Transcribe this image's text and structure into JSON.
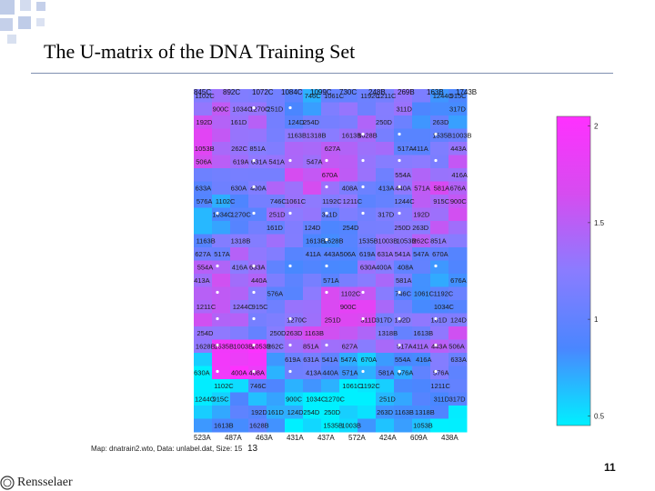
{
  "slide": {
    "title": "The U-matrix of the DNA Training Set",
    "slide_number": "11",
    "logo_text": "Rensselaer",
    "caption_left": "Map: dnatrain2.wto, Data: unlabel.dat, Size: 15",
    "caption_right": "13",
    "accent_colors": [
      "#bfcce8",
      "#c7d3ea",
      "#d8e0f0",
      "#7f8fb0"
    ]
  },
  "chart_data": {
    "type": "heatmap",
    "title": "",
    "colorbar": {
      "ticks": [
        "2",
        "1.5",
        "1",
        "0.5"
      ],
      "tick_values": [
        2,
        1.5,
        1,
        0.5
      ],
      "range": [
        0.45,
        2.05
      ],
      "colormap": [
        "#00f0ff",
        "#4a86ff",
        "#8a7cff",
        "#d64cf0",
        "#ff30ff"
      ]
    },
    "top_row_labels": [
      "845C",
      "892C",
      "1072C",
      "1084C",
      "1099C",
      "730C",
      "248B",
      "269B",
      "163B",
      "1743B"
    ],
    "bottom_row_labels": [
      "523A",
      "487A",
      "463A",
      "431A",
      "437A",
      "572A",
      "424A",
      "609A",
      "438A"
    ],
    "sample_labels": [
      "1102C",
      "746C",
      "1061C",
      "1192C",
      "1211C",
      "1244C",
      "915C",
      "900C",
      "1034C",
      "1270C",
      "251D",
      "311D",
      "317D",
      "192D",
      "161D",
      "124D",
      "254D",
      "250D",
      "263D",
      "1163B",
      "1318B",
      "1613B",
      "1628B",
      "1535B",
      "1003B",
      "1053B",
      "262C",
      "851A",
      "627A",
      "517A",
      "411A",
      "443A",
      "506A",
      "619A",
      "631A",
      "541A",
      "547A",
      "670A",
      "554A",
      "416A",
      "633A",
      "630A",
      "400A",
      "408A",
      "413A",
      "440A",
      "571A",
      "581A",
      "676A",
      "576A"
    ]
  }
}
